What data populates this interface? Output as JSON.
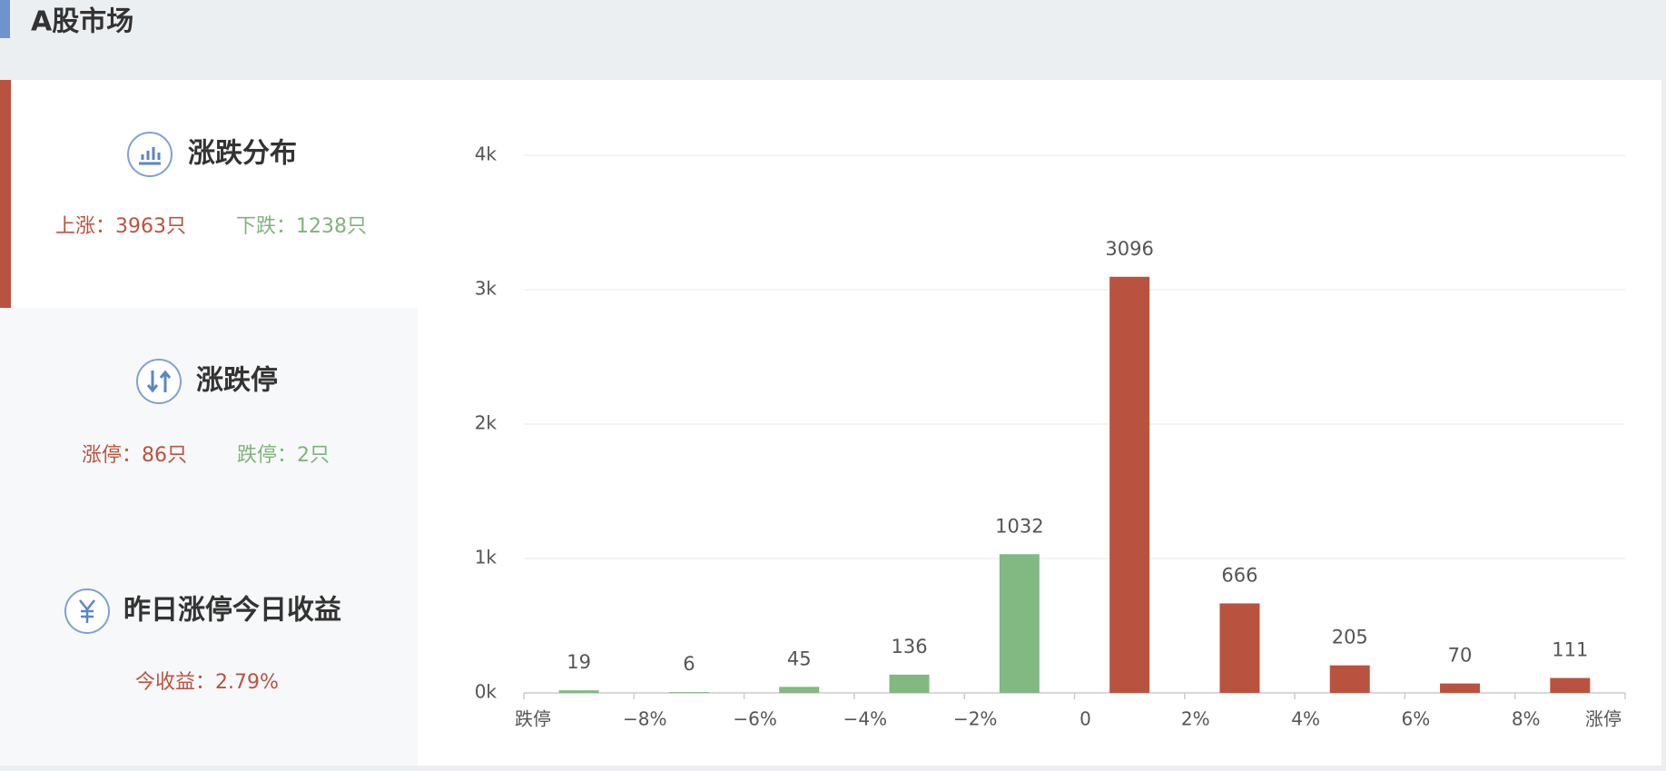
{
  "header": {
    "title": "A股市场"
  },
  "cards": [
    {
      "title": "涨跌分布",
      "stats": [
        {
          "text": "上涨：3963只",
          "color": "#b9533f"
        },
        {
          "text": "下跌：1238只",
          "color": "#7fb47a"
        }
      ]
    },
    {
      "title": "涨跌停",
      "stats": [
        {
          "text": "涨停：86只",
          "color": "#b9533f"
        },
        {
          "text": "跌停：2只",
          "color": "#7fb47a"
        }
      ]
    },
    {
      "title": "昨日涨停今日收益",
      "stats": [
        {
          "text": "今收益：2.79%",
          "color": "#b9533f"
        }
      ]
    }
  ],
  "chart_data": {
    "type": "bar",
    "xlabels": [
      "跌停",
      "−8%",
      "−6%",
      "−4%",
      "−2%",
      "0",
      "2%",
      "4%",
      "6%",
      "8%",
      "涨停"
    ],
    "values": [
      19,
      6,
      45,
      136,
      1032,
      3096,
      666,
      205,
      70,
      111
    ],
    "colors": [
      "#82b882",
      "#82b882",
      "#82b882",
      "#82b882",
      "#82b882",
      "#b9533f",
      "#b9533f",
      "#b9533f",
      "#b9533f",
      "#b9533f"
    ],
    "ylim": [
      0,
      4000
    ],
    "yticks": [
      {
        "value": 0,
        "label": "0k"
      },
      {
        "value": 1000,
        "label": "1k"
      },
      {
        "value": 2000,
        "label": "2k"
      },
      {
        "value": 3000,
        "label": "3k"
      },
      {
        "value": 4000,
        "label": "4k"
      }
    ],
    "grid": true
  }
}
